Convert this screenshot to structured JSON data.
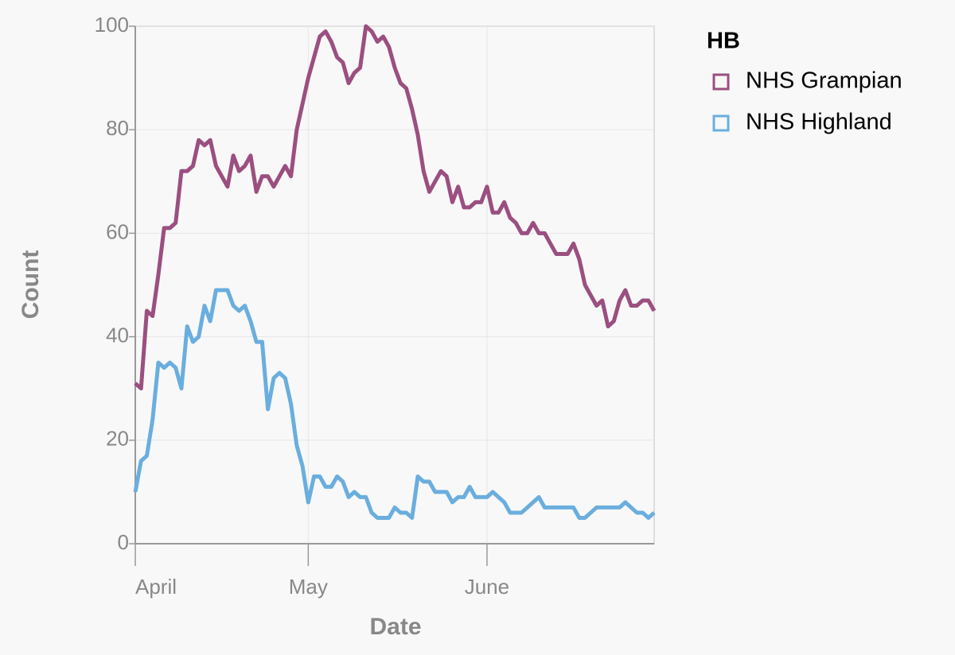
{
  "chart_data": {
    "type": "line",
    "x_label": "Date",
    "y_label": "Count",
    "legend_title": "HB",
    "xlim": [
      0,
      90
    ],
    "xticks": [
      {
        "value": 0,
        "label": "April"
      },
      {
        "value": 30,
        "label": "May"
      },
      {
        "value": 61,
        "label": "June"
      }
    ],
    "ylim": [
      0,
      100
    ],
    "yticks": [
      0,
      20,
      40,
      60,
      80,
      100
    ],
    "grid": true,
    "series": [
      {
        "name": "NHS Grampian",
        "color": "#9b4f80",
        "values": [
          31,
          30,
          45,
          44,
          52,
          61,
          61,
          62,
          72,
          72,
          73,
          78,
          77,
          78,
          73,
          71,
          69,
          75,
          72,
          73,
          75,
          68,
          71,
          71,
          69,
          71,
          73,
          71,
          80,
          85,
          90,
          94,
          98,
          99,
          97,
          94,
          93,
          89,
          91,
          92,
          100,
          99,
          97,
          98,
          96,
          92,
          89,
          88,
          84,
          79,
          72,
          68,
          70,
          72,
          71,
          66,
          69,
          65,
          65,
          66,
          66,
          69,
          64,
          64,
          66,
          63,
          62,
          60,
          60,
          62,
          60,
          60,
          58,
          56,
          56,
          56,
          58,
          55,
          50,
          48,
          46,
          47,
          42,
          43,
          47,
          49,
          46,
          46,
          47,
          47,
          45
        ]
      },
      {
        "name": "NHS Highland",
        "color": "#6aaede",
        "values": [
          10,
          16,
          17,
          24,
          35,
          34,
          35,
          34,
          30,
          42,
          39,
          40,
          46,
          43,
          49,
          49,
          49,
          46,
          45,
          46,
          43,
          39,
          39,
          26,
          32,
          33,
          32,
          27,
          19,
          15,
          8,
          13,
          13,
          11,
          11,
          13,
          12,
          9,
          10,
          9,
          9,
          6,
          5,
          5,
          5,
          7,
          6,
          6,
          5,
          13,
          12,
          12,
          10,
          10,
          10,
          8,
          9,
          9,
          11,
          9,
          9,
          9,
          10,
          9,
          8,
          6,
          6,
          6,
          7,
          8,
          9,
          7,
          7,
          7,
          7,
          7,
          7,
          5,
          5,
          6,
          7,
          7,
          7,
          7,
          7,
          8,
          7,
          6,
          6,
          5,
          6
        ]
      }
    ]
  }
}
